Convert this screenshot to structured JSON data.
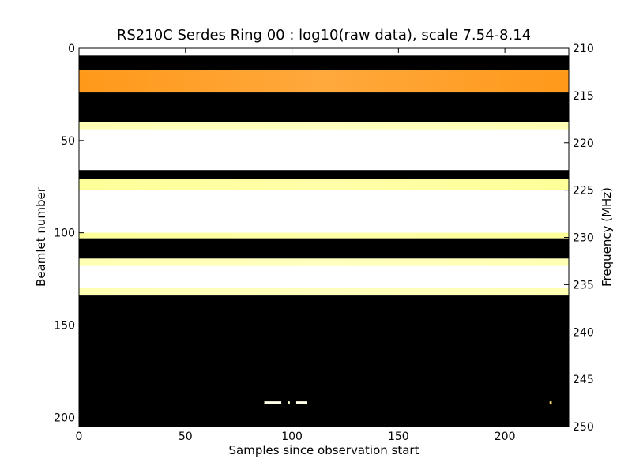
{
  "chart_data": {
    "type": "heatmap",
    "title": "RS210C Serdes Ring 00 : log10(raw data), scale 7.54-8.14",
    "xlabel": "Samples since observation start",
    "ylabel": "Beamlet number",
    "ylabel_right": "Frequency (MHz)",
    "xlim": [
      0,
      230
    ],
    "ylim": [
      205,
      0
    ],
    "ylim_right": [
      250,
      210
    ],
    "x_ticks": [
      "0",
      "50",
      "100",
      "150",
      "200"
    ],
    "y_ticks": [
      "0",
      "50",
      "100",
      "150",
      "200"
    ],
    "y_right_ticks": [
      "210",
      "215",
      "220",
      "225",
      "230",
      "235",
      "240",
      "245",
      "250"
    ],
    "scale": [
      7.54,
      8.14
    ],
    "colormap": "afmhot",
    "rows": [
      {
        "beamlet": [
          0,
          4
        ],
        "level": 1.0
      },
      {
        "beamlet": [
          4,
          12
        ],
        "level": 0.0
      },
      {
        "beamlet": [
          12,
          24
        ],
        "level": 0.55,
        "note": "orange band"
      },
      {
        "beamlet": [
          24,
          40
        ],
        "level": 0.0
      },
      {
        "beamlet": [
          40,
          44
        ],
        "level": 0.85
      },
      {
        "beamlet": [
          44,
          66
        ],
        "level": 1.0
      },
      {
        "beamlet": [
          66,
          71
        ],
        "level": 0.0
      },
      {
        "beamlet": [
          71,
          77
        ],
        "level": 0.8
      },
      {
        "beamlet": [
          77,
          100
        ],
        "level": 1.0
      },
      {
        "beamlet": [
          100,
          103
        ],
        "level": 0.8
      },
      {
        "beamlet": [
          103,
          114
        ],
        "level": 0.0
      },
      {
        "beamlet": [
          114,
          118
        ],
        "level": 0.85
      },
      {
        "beamlet": [
          118,
          130
        ],
        "level": 1.0
      },
      {
        "beamlet": [
          130,
          134
        ],
        "level": 0.85
      },
      {
        "beamlet": [
          134,
          205
        ],
        "level": 0.0
      }
    ],
    "hotspots": [
      {
        "x": [
          87,
          91
        ],
        "beamlet": 192,
        "level": 0.95
      },
      {
        "x": [
          91,
          95
        ],
        "beamlet": 192,
        "level": 0.95
      },
      {
        "x": [
          98,
          99
        ],
        "beamlet": 192,
        "level": 0.9
      },
      {
        "x": [
          102,
          107
        ],
        "beamlet": 192,
        "level": 0.95
      },
      {
        "x": [
          221,
          222
        ],
        "beamlet": 192,
        "level": 0.7
      }
    ],
    "colors": {
      "background": "#000000",
      "frame": "#000000"
    }
  }
}
